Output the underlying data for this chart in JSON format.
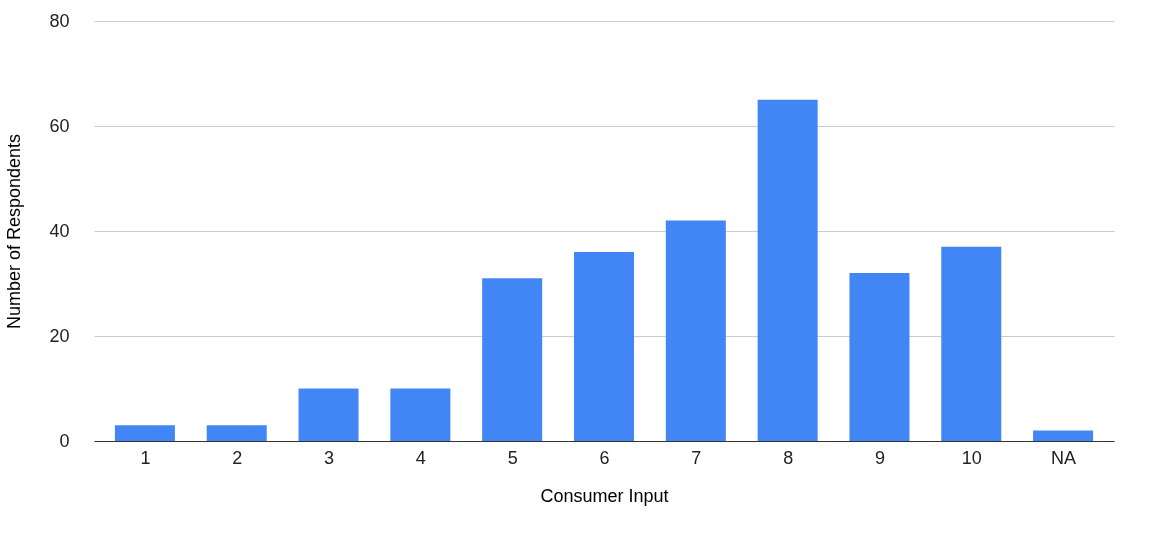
{
  "chart_data": {
    "type": "bar",
    "xlabel": "Consumer Input",
    "ylabel": "Number of Respondents",
    "categories": [
      "1",
      "2",
      "3",
      "4",
      "5",
      "6",
      "7",
      "8",
      "9",
      "10",
      "NA"
    ],
    "series": [
      {
        "color": "#4285f4",
        "values": [
          3,
          3,
          10,
          10,
          31,
          36,
          42,
          65,
          32,
          37,
          2
        ]
      }
    ],
    "ylim": [
      0,
      80
    ],
    "yticks": [
      0,
      20,
      40,
      60,
      80
    ],
    "grid": "y"
  }
}
